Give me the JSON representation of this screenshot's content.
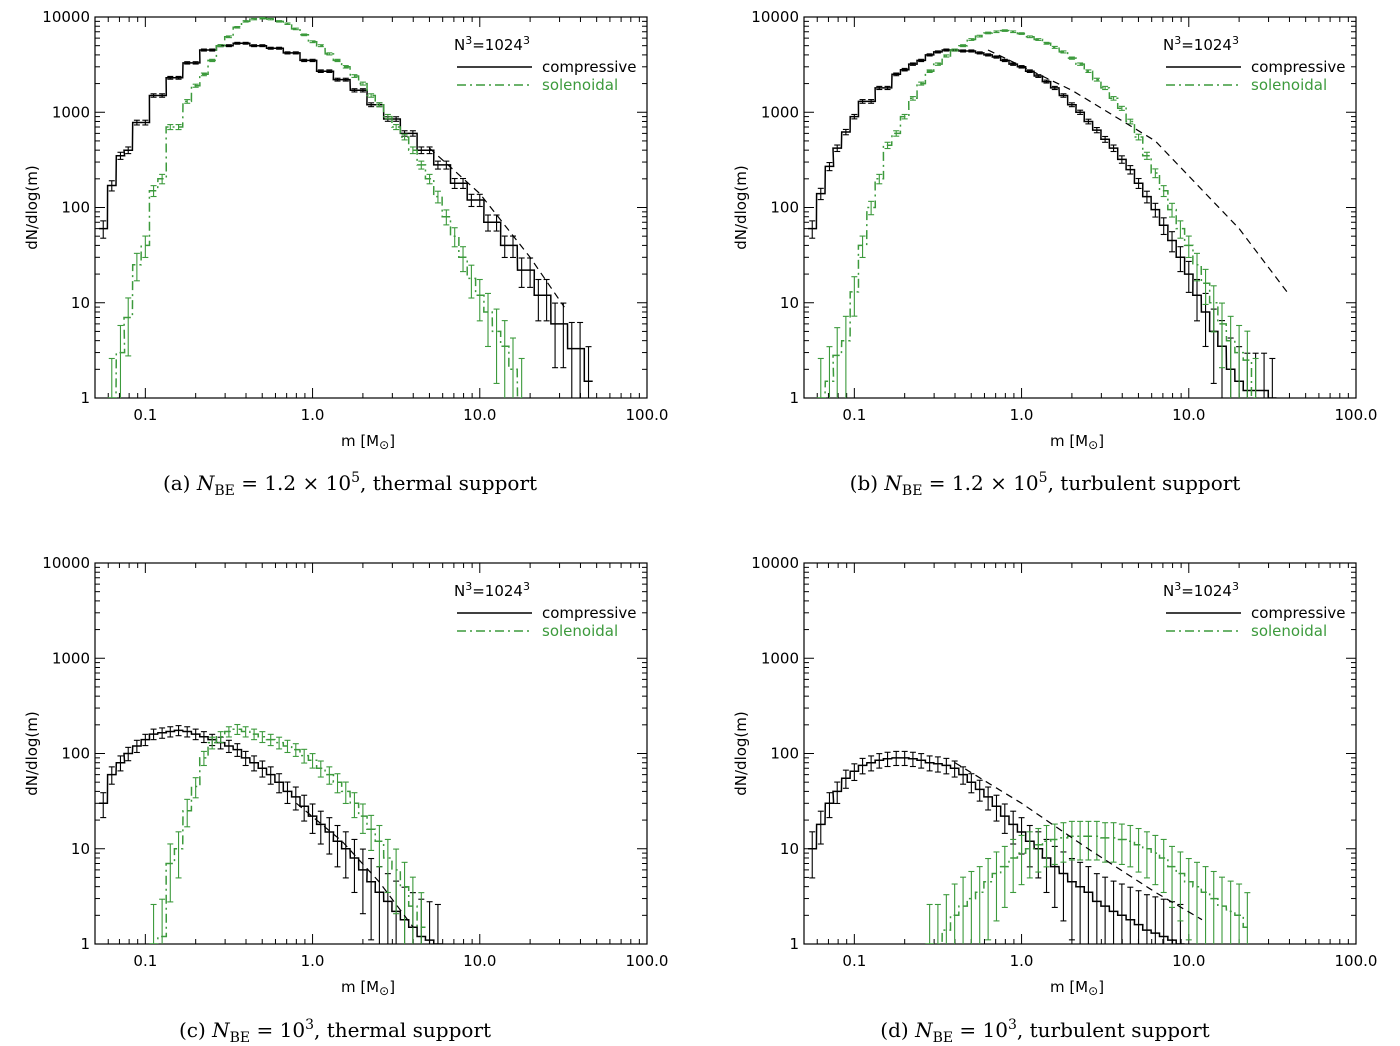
{
  "colors": {
    "compressive": "#000000",
    "solenoidal": "#3c9a3c",
    "fit": "#000000"
  },
  "axes": {
    "xlabel": "m [M",
    "xlabel_unit_symbol": "⊙",
    "xlabel_close": "]",
    "ylabel": "dN/dlog(m)",
    "x_scale": "log",
    "y_scale": "log",
    "xlim": [
      0.05,
      100.0
    ],
    "ylim": [
      1,
      10000
    ],
    "x_ticks": [
      0.1,
      1.0,
      10.0,
      100.0
    ],
    "x_tick_labels": [
      "0.1",
      "1.0",
      "10.0",
      "100.0"
    ],
    "y_ticks": [
      1,
      10,
      100,
      1000,
      10000
    ],
    "y_tick_labels": [
      "1",
      "10",
      "100",
      "1000",
      "10000"
    ]
  },
  "legend": {
    "title_base": "N",
    "title_exp": "3",
    "title_eq": "=1024",
    "title_exp2": "3",
    "compressive": "compressive",
    "solenoidal": "solenoidal",
    "placement": "top-right"
  },
  "chart_data": [
    {
      "type": "line",
      "panel": "a",
      "caption": "(a) N_BE = 1.2 × 10^5, thermal support",
      "caption_parts": {
        "prefix": "(a) ",
        "N": "N",
        "sub": "BE",
        "eq": " = 1.2 × 10",
        "sup": "5",
        "suffix": ", thermal support"
      },
      "xlim": [
        0.05,
        100.0
      ],
      "ylim": [
        1,
        10000
      ],
      "x_scale": "log",
      "y_scale": "log",
      "series": [
        {
          "name": "compressive",
          "style": "solid histogram",
          "x": [
            0.056,
            0.063,
            0.071,
            0.079,
            0.089,
            0.1,
            0.112,
            0.126,
            0.141,
            0.158,
            0.178,
            0.2,
            0.224,
            0.251,
            0.282,
            0.316,
            0.355,
            0.398,
            0.447,
            0.501,
            0.562,
            0.631,
            0.708,
            0.794,
            0.891,
            1.0,
            1.12,
            1.26,
            1.41,
            1.58,
            1.78,
            2.0,
            2.24,
            2.51,
            2.82,
            3.16,
            3.55,
            3.98,
            4.47,
            5.01,
            5.62,
            6.31,
            7.08,
            7.94,
            8.91,
            10.0,
            11.2,
            12.6,
            14.1,
            15.8,
            17.8,
            20.0,
            22.4,
            25.1,
            28.2,
            31.6,
            35.5,
            39.8,
            44.7
          ],
          "y": [
            60,
            170,
            350,
            400,
            780,
            780,
            1500,
            1500,
            2300,
            2300,
            3300,
            3300,
            4500,
            4500,
            5000,
            5000,
            5300,
            5300,
            5000,
            5000,
            4700,
            4700,
            4200,
            4200,
            3500,
            3500,
            2700,
            2700,
            2200,
            2200,
            1700,
            1700,
            1200,
            1200,
            850,
            850,
            600,
            600,
            400,
            400,
            280,
            280,
            180,
            180,
            120,
            120,
            70,
            70,
            40,
            40,
            22,
            22,
            12,
            12,
            6,
            6,
            3.3,
            3.3,
            1.5
          ]
        },
        {
          "name": "solenoidal",
          "style": "dash-dot histogram",
          "x": [
            0.063,
            0.071,
            0.079,
            0.089,
            0.1,
            0.112,
            0.126,
            0.141,
            0.158,
            0.178,
            0.2,
            0.224,
            0.251,
            0.282,
            0.316,
            0.355,
            0.398,
            0.447,
            0.501,
            0.562,
            0.631,
            0.708,
            0.794,
            0.891,
            1.0,
            1.12,
            1.26,
            1.41,
            1.58,
            1.78,
            2.0,
            2.24,
            2.51,
            2.82,
            3.16,
            3.55,
            3.98,
            4.47,
            5.01,
            5.62,
            6.31,
            7.08,
            7.94,
            8.91,
            10.0,
            11.2,
            12.6,
            14.1,
            15.8,
            17.8
          ],
          "y": [
            1,
            3,
            7,
            25,
            40,
            150,
            200,
            700,
            700,
            1300,
            1900,
            2500,
            3500,
            5000,
            6200,
            7800,
            9000,
            9500,
            9700,
            9500,
            9000,
            8500,
            7500,
            6500,
            5500,
            5000,
            4100,
            3500,
            3000,
            2400,
            2000,
            1500,
            1200,
            900,
            700,
            550,
            400,
            280,
            200,
            130,
            80,
            50,
            30,
            18,
            12,
            8,
            5,
            3.5,
            2,
            1
          ]
        },
        {
          "name": "",
          "style": "dashed fit",
          "x": [
            5.0,
            10.0,
            20.0,
            32.0
          ],
          "y": [
            420,
            140,
            30,
            9
          ]
        }
      ]
    },
    {
      "type": "line",
      "panel": "b",
      "caption": "(b) N_BE = 1.2 × 10^5, turbulent support",
      "caption_parts": {
        "prefix": "(b) ",
        "N": "N",
        "sub": "BE",
        "eq": " = 1.2 × 10",
        "sup": "5",
        "suffix": ", turbulent support"
      },
      "xlim": [
        0.05,
        100.0
      ],
      "ylim": [
        1,
        10000
      ],
      "x_scale": "log",
      "y_scale": "log",
      "series": [
        {
          "name": "compressive",
          "style": "solid histogram",
          "x": [
            0.056,
            0.063,
            0.071,
            0.079,
            0.089,
            0.1,
            0.112,
            0.126,
            0.141,
            0.158,
            0.178,
            0.2,
            0.224,
            0.251,
            0.282,
            0.316,
            0.355,
            0.398,
            0.447,
            0.501,
            0.562,
            0.631,
            0.708,
            0.794,
            0.891,
            1.0,
            1.12,
            1.26,
            1.41,
            1.58,
            1.78,
            2.0,
            2.24,
            2.51,
            2.82,
            3.16,
            3.55,
            3.98,
            4.47,
            5.01,
            5.62,
            6.31,
            7.08,
            7.94,
            8.91,
            10.0,
            11.2,
            12.6,
            14.1,
            15.8,
            17.8,
            20.0,
            22.4,
            25.1,
            28.2,
            31.6
          ],
          "y": [
            60,
            140,
            270,
            420,
            620,
            900,
            1300,
            1300,
            1800,
            1800,
            2500,
            2800,
            3200,
            3500,
            4000,
            4300,
            4500,
            4500,
            4400,
            4400,
            4200,
            4000,
            3800,
            3500,
            3200,
            3000,
            2700,
            2400,
            2100,
            1800,
            1500,
            1200,
            1000,
            800,
            650,
            520,
            420,
            320,
            250,
            180,
            130,
            95,
            65,
            45,
            30,
            20,
            12,
            8,
            5,
            3.5,
            2,
            1.5,
            1.2,
            1.2,
            1.2,
            1
          ]
        },
        {
          "name": "solenoidal",
          "style": "dash-dot histogram",
          "x": [
            0.063,
            0.071,
            0.079,
            0.089,
            0.1,
            0.112,
            0.126,
            0.141,
            0.158,
            0.178,
            0.2,
            0.224,
            0.251,
            0.282,
            0.316,
            0.355,
            0.398,
            0.447,
            0.501,
            0.562,
            0.631,
            0.708,
            0.794,
            0.891,
            1.0,
            1.12,
            1.26,
            1.41,
            1.58,
            1.78,
            2.0,
            2.24,
            2.51,
            2.82,
            3.16,
            3.55,
            3.98,
            4.47,
            5.01,
            5.62,
            6.31,
            7.08,
            7.94,
            8.91,
            10.0,
            11.2,
            12.6,
            14.1,
            15.8,
            17.8,
            20.0,
            22.4,
            25.1
          ],
          "y": [
            1,
            1.5,
            2.8,
            4,
            13,
            40,
            100,
            200,
            450,
            600,
            900,
            1400,
            2000,
            2700,
            3200,
            3900,
            4500,
            5000,
            5800,
            6300,
            6800,
            7000,
            7200,
            7000,
            6700,
            6200,
            5800,
            5300,
            4800,
            4300,
            3700,
            3200,
            2700,
            2200,
            1800,
            1400,
            1100,
            800,
            550,
            350,
            230,
            150,
            95,
            60,
            40,
            25,
            16,
            10,
            6,
            4,
            3,
            2.5,
            1
          ]
        },
        {
          "name": "",
          "style": "dashed fit",
          "x": [
            0.63,
            2.0,
            6.3,
            20.0,
            40.0
          ],
          "y": [
            4500,
            1700,
            500,
            60,
            12
          ]
        }
      ]
    },
    {
      "type": "line",
      "panel": "c",
      "caption": "(c) N_BE = 10^3, thermal support",
      "caption_parts": {
        "prefix": "(c) ",
        "N": "N",
        "sub": "BE",
        "eq": " = 10",
        "sup": "3",
        "suffix": ", thermal support"
      },
      "xlim": [
        0.05,
        100.0
      ],
      "ylim": [
        1,
        10000
      ],
      "x_scale": "log",
      "y_scale": "log",
      "series": [
        {
          "name": "compressive",
          "style": "solid histogram",
          "x": [
            0.056,
            0.063,
            0.071,
            0.079,
            0.089,
            0.1,
            0.112,
            0.126,
            0.141,
            0.158,
            0.178,
            0.2,
            0.224,
            0.251,
            0.282,
            0.316,
            0.355,
            0.398,
            0.447,
            0.501,
            0.562,
            0.631,
            0.708,
            0.794,
            0.891,
            1.0,
            1.12,
            1.26,
            1.41,
            1.58,
            1.78,
            2.0,
            2.24,
            2.51,
            2.82,
            3.16,
            3.55,
            3.98,
            4.47,
            5.01,
            5.62
          ],
          "y": [
            30,
            60,
            80,
            100,
            120,
            140,
            160,
            165,
            170,
            175,
            170,
            160,
            150,
            140,
            130,
            120,
            110,
            90,
            80,
            70,
            60,
            50,
            40,
            35,
            28,
            22,
            18,
            15,
            12,
            10,
            8,
            6,
            4.5,
            3.5,
            2.8,
            2.2,
            1.8,
            1.5,
            1.2,
            1.1,
            1
          ]
        },
        {
          "name": "solenoidal",
          "style": "dash-dot histogram",
          "x": [
            0.112,
            0.126,
            0.141,
            0.158,
            0.178,
            0.2,
            0.224,
            0.251,
            0.282,
            0.316,
            0.355,
            0.398,
            0.447,
            0.501,
            0.562,
            0.631,
            0.708,
            0.794,
            0.891,
            1.0,
            1.12,
            1.26,
            1.41,
            1.58,
            1.78,
            2.0,
            2.24,
            2.51,
            2.82,
            3.16,
            3.55,
            3.98,
            4.47
          ],
          "y": [
            1,
            1.2,
            7,
            10,
            25,
            45,
            90,
            130,
            150,
            170,
            180,
            170,
            160,
            150,
            140,
            130,
            120,
            110,
            95,
            85,
            70,
            60,
            50,
            40,
            30,
            22,
            16,
            12,
            8,
            6,
            4,
            2.5,
            1.5
          ]
        },
        {
          "name": "",
          "style": "dashed fit",
          "x": [
            0.8,
            1.5,
            2.5,
            4.0
          ],
          "y": [
            30,
            12,
            4.5,
            1.5
          ]
        }
      ]
    },
    {
      "type": "line",
      "panel": "d",
      "caption": "(d) N_BE = 10^3, turbulent support",
      "caption_parts": {
        "prefix": "(d) ",
        "N": "N",
        "sub": "BE",
        "eq": " = 10",
        "sup": "3",
        "suffix": ", turbulent support"
      },
      "xlim": [
        0.05,
        100.0
      ],
      "ylim": [
        1,
        10000
      ],
      "x_scale": "log",
      "y_scale": "log",
      "series": [
        {
          "name": "compressive",
          "style": "solid histogram",
          "x": [
            0.056,
            0.063,
            0.071,
            0.079,
            0.089,
            0.1,
            0.112,
            0.126,
            0.141,
            0.158,
            0.178,
            0.2,
            0.224,
            0.251,
            0.282,
            0.316,
            0.355,
            0.398,
            0.447,
            0.501,
            0.562,
            0.631,
            0.708,
            0.794,
            0.891,
            1.0,
            1.12,
            1.26,
            1.41,
            1.58,
            1.78,
            2.0,
            2.24,
            2.51,
            2.82,
            3.16,
            3.55,
            3.98,
            4.47,
            5.01,
            5.62,
            6.31,
            7.08,
            7.94,
            8.91
          ],
          "y": [
            10,
            18,
            30,
            40,
            55,
            65,
            75,
            80,
            85,
            88,
            90,
            90,
            88,
            85,
            80,
            78,
            75,
            70,
            60,
            50,
            42,
            35,
            28,
            22,
            18,
            15,
            12,
            10,
            8,
            6.5,
            5.5,
            4.5,
            4,
            3.5,
            2.8,
            2.5,
            2.2,
            2,
            1.8,
            1.6,
            1.4,
            1.3,
            1.2,
            1.1,
            1
          ]
        },
        {
          "name": "solenoidal",
          "style": "dash-dot histogram",
          "x": [
            0.282,
            0.316,
            0.355,
            0.398,
            0.447,
            0.501,
            0.562,
            0.631,
            0.708,
            0.794,
            0.891,
            1.0,
            1.12,
            1.26,
            1.41,
            1.58,
            1.78,
            2.0,
            2.24,
            2.51,
            2.82,
            3.16,
            3.55,
            3.98,
            4.47,
            5.01,
            5.62,
            6.31,
            7.08,
            7.94,
            8.91,
            10.0,
            11.2,
            12.6,
            14.1,
            15.8,
            17.8,
            20.0,
            22.4
          ],
          "y": [
            1,
            1,
            1.4,
            2,
            2.5,
            3,
            3.5,
            4.5,
            5.5,
            6.5,
            8,
            9,
            10,
            11,
            12,
            12.5,
            13,
            13.5,
            13.5,
            13.5,
            13.5,
            13,
            13,
            12.5,
            12,
            11,
            10,
            9,
            8,
            6.5,
            5.5,
            4.5,
            4,
            3.5,
            3,
            2.5,
            2.2,
            2,
            1.5
          ]
        },
        {
          "name": "",
          "style": "dashed fit",
          "x": [
            0.4,
            1.0,
            2.5,
            6.3,
            12.0
          ],
          "y": [
            80,
            30,
            10,
            3.5,
            1.8
          ]
        }
      ]
    }
  ]
}
